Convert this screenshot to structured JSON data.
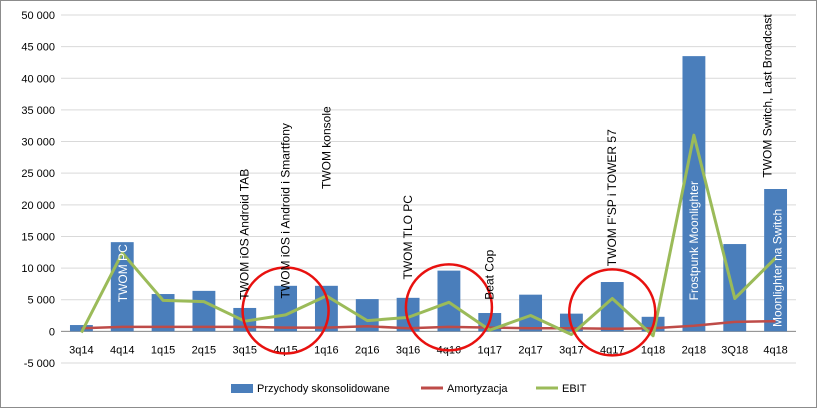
{
  "chart_data": {
    "type": "bar",
    "categories": [
      "3q14",
      "4q14",
      "1q15",
      "2q15",
      "3q15",
      "4q15",
      "1q16",
      "2q16",
      "3q16",
      "4q16",
      "1q17",
      "2q17",
      "3q17",
      "4q17",
      "1q18",
      "2q18",
      "3Q18",
      "4q18"
    ],
    "ylim": [
      -5000,
      50000
    ],
    "yticks": [
      "-5 000",
      "0",
      "5 000",
      "10 000",
      "15 000",
      "20 000",
      "25 000",
      "30 000",
      "35 000",
      "40 000",
      "45 000",
      "50 000"
    ],
    "grid": "horizontal",
    "legend_position": "bottom",
    "series": [
      {
        "name": "Przychody skonsolidowane",
        "type": "bar",
        "color": "#4a7ebb",
        "values": [
          1000,
          14100,
          5900,
          6400,
          3700,
          7200,
          7200,
          5100,
          5300,
          9600,
          2900,
          5800,
          2800,
          7800,
          2300,
          43500,
          13800,
          22500
        ]
      },
      {
        "name": "Amortyzacja",
        "type": "line",
        "color": "#be4b48",
        "values": [
          500,
          700,
          700,
          700,
          700,
          600,
          600,
          800,
          500,
          700,
          600,
          500,
          500,
          400,
          500,
          900,
          1500,
          1600
        ]
      },
      {
        "name": "EBIT",
        "type": "line",
        "color": "#9bbb59",
        "values": [
          -200,
          12400,
          4900,
          4700,
          1600,
          2600,
          5600,
          1700,
          2200,
          4600,
          200,
          2500,
          -500,
          5200,
          -700,
          31000,
          5200,
          11600
        ]
      }
    ],
    "annotations": [
      {
        "category": "4q14",
        "text": "TWOM PC",
        "style": "white"
      },
      {
        "category": "3q15",
        "text": "TWOM iOS Android TAB",
        "style": "black"
      },
      {
        "category": "4q15",
        "text": "TWOM iOS i Android i Smartfony",
        "style": "black"
      },
      {
        "category": "1q16",
        "text": "TWOM konsole",
        "style": "black"
      },
      {
        "category": "3q16",
        "text": "TWOM TLO  PC",
        "style": "black"
      },
      {
        "category": "1q17",
        "text": "Beat Cop",
        "style": "black"
      },
      {
        "category": "4q17",
        "text": "TWOM F'SP i TOWER 57",
        "style": "black"
      },
      {
        "category": "2q18",
        "text": "Frostpunk  Moonlighter",
        "style": "white"
      },
      {
        "category": "4q18",
        "text": "TWOM Switch, Last Broadcast",
        "style": "black"
      },
      {
        "category": "4q18",
        "text": "Moonlighter na Switch",
        "style": "white"
      }
    ],
    "highlight_circles": [
      {
        "center_category": "4q15",
        "center_value": 3300,
        "color": "#e8110f"
      },
      {
        "center_category": "4q16",
        "center_value": 3800,
        "color": "#e8110f"
      },
      {
        "center_category": "4q17",
        "center_value": 3000,
        "color": "#e8110f"
      }
    ]
  }
}
